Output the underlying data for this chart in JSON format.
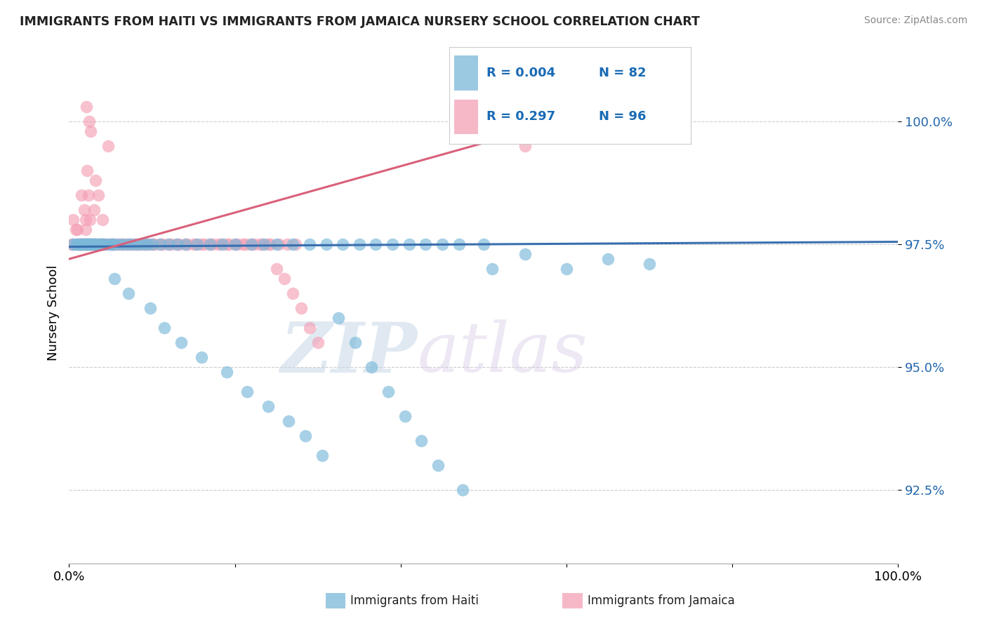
{
  "title": "IMMIGRANTS FROM HAITI VS IMMIGRANTS FROM JAMAICA NURSERY SCHOOL CORRELATION CHART",
  "source": "Source: ZipAtlas.com",
  "ylabel": "Nursery School",
  "legend_blue_r": "R = 0.004",
  "legend_blue_n": "N = 82",
  "legend_pink_r": "R = 0.297",
  "legend_pink_n": "N = 96",
  "legend_blue_label": "Immigrants from Haiti",
  "legend_pink_label": "Immigrants from Jamaica",
  "watermark_zip": "ZIP",
  "watermark_atlas": "atlas",
  "blue_color": "#7ab8d9",
  "pink_color": "#f4a0b5",
  "blue_line_color": "#3a6faf",
  "pink_line_color": "#d9607a",
  "x_min": 0.0,
  "x_max": 100.0,
  "y_min": 91.0,
  "y_max": 101.2,
  "yticks": [
    92.5,
    95.0,
    97.5,
    100.0
  ],
  "blue_scatter_x": [
    0.5,
    0.8,
    1.0,
    1.2,
    1.5,
    1.5,
    1.8,
    2.0,
    2.0,
    2.2,
    2.3,
    2.5,
    2.5,
    2.8,
    3.0,
    3.0,
    3.2,
    3.5,
    3.8,
    4.0,
    4.0,
    4.5,
    5.0,
    5.2,
    5.5,
    6.0,
    6.5,
    7.0,
    7.5,
    8.0,
    8.5,
    9.0,
    9.5,
    10.0,
    11.0,
    12.0,
    13.0,
    14.0,
    15.5,
    17.0,
    18.5,
    20.0,
    22.0,
    23.5,
    25.0,
    27.0,
    29.0,
    31.0,
    33.0,
    35.0,
    37.0,
    39.0,
    41.0,
    43.0,
    45.0,
    47.0,
    50.0,
    5.5,
    7.2,
    9.8,
    11.5,
    13.5,
    16.0,
    19.0,
    21.5,
    24.0,
    26.5,
    28.5,
    30.5,
    32.5,
    34.5,
    36.5,
    38.5,
    40.5,
    42.5,
    44.5,
    47.5,
    51.0,
    55.0,
    60.0,
    65.0,
    70.0
  ],
  "blue_scatter_y": [
    97.5,
    97.5,
    97.5,
    97.5,
    97.5,
    97.5,
    97.5,
    97.5,
    97.5,
    97.5,
    97.5,
    97.5,
    97.5,
    97.5,
    97.5,
    97.5,
    97.5,
    97.5,
    97.5,
    97.5,
    97.5,
    97.5,
    97.5,
    97.5,
    97.5,
    97.5,
    97.5,
    97.5,
    97.5,
    97.5,
    97.5,
    97.5,
    97.5,
    97.5,
    97.5,
    97.5,
    97.5,
    97.5,
    97.5,
    97.5,
    97.5,
    97.5,
    97.5,
    97.5,
    97.5,
    97.5,
    97.5,
    97.5,
    97.5,
    97.5,
    97.5,
    97.5,
    97.5,
    97.5,
    97.5,
    97.5,
    97.5,
    96.8,
    96.5,
    96.2,
    95.8,
    95.5,
    95.2,
    94.9,
    94.5,
    94.2,
    93.9,
    93.6,
    93.2,
    96.0,
    95.5,
    95.0,
    94.5,
    94.0,
    93.5,
    93.0,
    92.5,
    97.0,
    97.3,
    97.0,
    97.2,
    97.1
  ],
  "pink_scatter_x": [
    0.3,
    0.5,
    0.5,
    0.8,
    1.0,
    1.0,
    1.2,
    1.3,
    1.5,
    1.5,
    1.7,
    1.8,
    1.8,
    2.0,
    2.0,
    2.0,
    2.2,
    2.2,
    2.3,
    2.5,
    2.5,
    2.7,
    2.8,
    3.0,
    3.0,
    3.2,
    3.2,
    3.5,
    3.5,
    3.8,
    4.0,
    4.0,
    4.2,
    4.5,
    5.0,
    5.2,
    5.5,
    6.0,
    6.5,
    7.0,
    7.5,
    8.0,
    8.5,
    9.0,
    9.5,
    10.0,
    11.0,
    12.0,
    13.0,
    14.0,
    15.0,
    16.0,
    17.0,
    18.0,
    19.0,
    20.0,
    21.0,
    22.0,
    23.0,
    24.0,
    25.0,
    26.0,
    27.0,
    28.0,
    29.0,
    30.0,
    3.3,
    4.3,
    5.3,
    6.3,
    7.3,
    8.3,
    9.3,
    10.3,
    11.3,
    12.3,
    13.3,
    14.3,
    15.3,
    16.3,
    17.3,
    18.3,
    19.3,
    20.3,
    21.3,
    22.3,
    23.3,
    24.3,
    25.3,
    26.3,
    27.3,
    55.0,
    2.1,
    2.4,
    2.6,
    4.7
  ],
  "pink_scatter_y": [
    97.5,
    97.5,
    98.0,
    97.8,
    97.5,
    97.8,
    97.5,
    97.5,
    97.5,
    98.5,
    97.5,
    97.5,
    98.2,
    97.5,
    97.8,
    98.0,
    97.5,
    99.0,
    98.5,
    97.5,
    98.0,
    97.5,
    97.5,
    97.5,
    98.2,
    97.5,
    98.8,
    97.5,
    98.5,
    97.5,
    97.5,
    98.0,
    97.5,
    97.5,
    97.5,
    97.5,
    97.5,
    97.5,
    97.5,
    97.5,
    97.5,
    97.5,
    97.5,
    97.5,
    97.5,
    97.5,
    97.5,
    97.5,
    97.5,
    97.5,
    97.5,
    97.5,
    97.5,
    97.5,
    97.5,
    97.5,
    97.5,
    97.5,
    97.5,
    97.5,
    97.0,
    96.8,
    96.5,
    96.2,
    95.8,
    95.5,
    97.5,
    97.5,
    97.5,
    97.5,
    97.5,
    97.5,
    97.5,
    97.5,
    97.5,
    97.5,
    97.5,
    97.5,
    97.5,
    97.5,
    97.5,
    97.5,
    97.5,
    97.5,
    97.5,
    97.5,
    97.5,
    97.5,
    97.5,
    97.5,
    97.5,
    99.5,
    100.3,
    100.0,
    99.8,
    99.5
  ],
  "blue_trend_x": [
    0,
    100
  ],
  "blue_trend_y": [
    97.45,
    97.55
  ],
  "pink_trend_x": [
    0,
    55
  ],
  "pink_trend_y": [
    97.2,
    99.8
  ]
}
